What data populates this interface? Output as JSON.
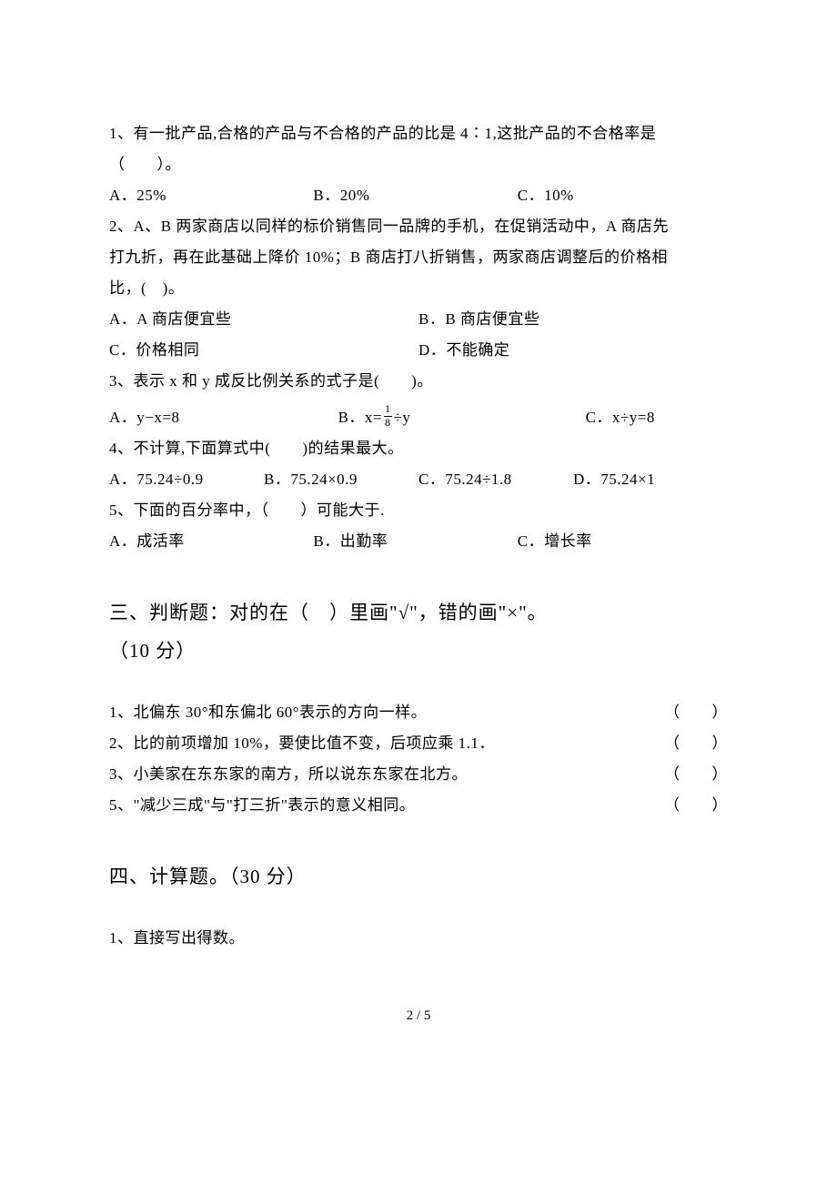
{
  "q1": {
    "stem_l1": "1、有一批产品,合格的产品与不合格的产品的比是 4∶1,这批产品的不合格率是",
    "stem_l2": "（　　）。",
    "a": "A．25%",
    "b": "B．20%",
    "c": "C．10%"
  },
  "q2": {
    "l1": "2、A、B 两家商店以同样的标价销售同一品牌的手机，在促销活动中，A 商店先",
    "l2": "打九折，再在此基础上降价 10%；B 商店打八折销售，两家商店调整后的价格相",
    "l3": "比，(　)。",
    "a": "A．A 商店便宜些",
    "b": "B．B 商店便宜些",
    "c": "C．价格相同",
    "d": "D．不能确定"
  },
  "q3": {
    "stem": "3、表示 x 和 y 成反比例关系的式子是(　　)。",
    "a": "A．y−x=8",
    "b_pre": "B．x=",
    "b_num": "1",
    "b_den": "8",
    "b_post": "÷y",
    "c": "C．x÷y=8"
  },
  "q4": {
    "stem": "4、不计算,下面算式中(　　)的结果最大。",
    "a": "A．75.24÷0.9",
    "b": "B．75.24×0.9",
    "c": "C．75.24÷1.8",
    "d": "D．75.24×1"
  },
  "q5": {
    "stem": "5、下面的百分率中，（　　）可能大于.",
    "a": "A．成活率",
    "b": "B．出勤率",
    "c": "C．增长率"
  },
  "sec3": {
    "heading_l1": "三、判断题：对的在（　）里画\"√\"，错的画\"×\"。",
    "heading_l2": "（10 分）",
    "j1_text": "1、北偏东 30°和东偏北 60°表示的方向一样。",
    "j1_paren": "（　　）",
    "j2_text": "2、比的前项增加 10%，要使比值不变，后项应乘 1.1．",
    "j2_paren": "（　　）",
    "j3_text": "3、小美家在东东家的南方，所以说东东家在北方。",
    "j3_paren": "（　　）",
    "j5_text": "5、\"减少三成\"与\"打三折\"表示的意义相同。",
    "j5_paren": "（　　）"
  },
  "sec4": {
    "heading": "四、计算题。（30 分）",
    "q1": "1、直接写出得数。"
  },
  "pagenum": "2 / 5"
}
